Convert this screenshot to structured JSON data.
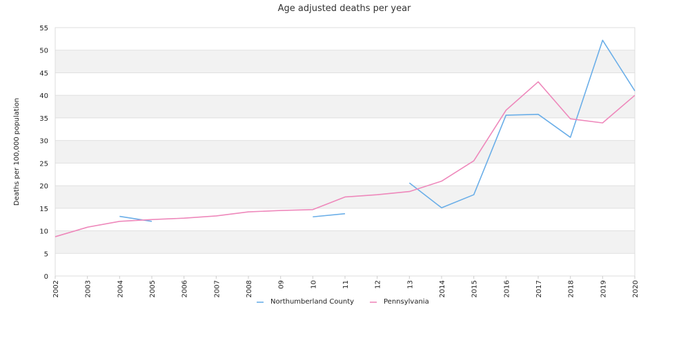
{
  "chart_data": {
    "type": "line",
    "title": "Age adjusted deaths per year",
    "xlabel": "",
    "ylabel": "Deaths per 100,000 population",
    "categories": [
      "2002",
      "2003",
      "2004",
      "2005",
      "2006",
      "2007",
      "2008",
      "09",
      "10",
      "11",
      "12",
      "13",
      "2014",
      "2015",
      "2016",
      "2017",
      "2018",
      "2019",
      "2020"
    ],
    "ylim": [
      0,
      55
    ],
    "yticks": [
      0,
      5,
      10,
      15,
      20,
      25,
      30,
      35,
      40,
      45,
      50,
      55
    ],
    "grid": "horizontal alternating bands",
    "legend_position": "bottom-center",
    "series": [
      {
        "name": "Northumberland County",
        "color": "#6aaee8",
        "values": [
          null,
          null,
          13.2,
          12.1,
          null,
          null,
          null,
          null,
          13.1,
          13.8,
          null,
          20.6,
          15.1,
          18.0,
          35.6,
          35.8,
          30.7,
          52.2,
          41.0
        ]
      },
      {
        "name": "Pennsylvania",
        "color": "#ee88bb",
        "values": [
          8.7,
          10.8,
          12.1,
          12.5,
          12.8,
          13.3,
          14.2,
          14.5,
          14.7,
          17.5,
          18.0,
          18.7,
          21.0,
          25.5,
          36.7,
          43.0,
          34.8,
          33.9,
          40.0
        ]
      }
    ]
  }
}
